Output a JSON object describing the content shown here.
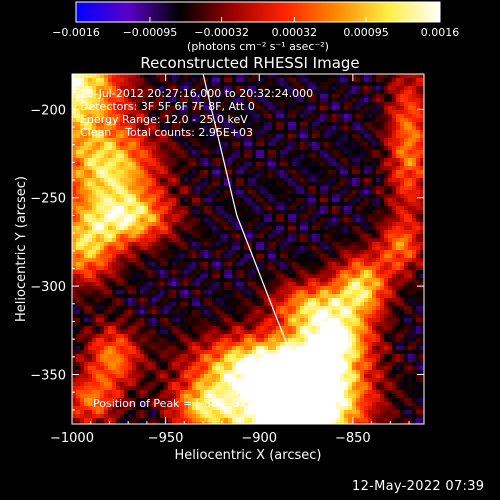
{
  "chart_data": {
    "type": "heatmap",
    "title": "Reconstructed RHESSI Image",
    "xlabel": "Heliocentric X (arcsec)",
    "ylabel": "Heliocentric Y (arcsec)",
    "xlim": [
      -1000,
      -812
    ],
    "ylim": [
      -378,
      -180
    ],
    "xticks": [
      -1000,
      -950,
      -900,
      -850
    ],
    "xtick_labels": [
      "−1000",
      "−950",
      "−900",
      "−850"
    ],
    "yticks": [
      -200,
      -250,
      -300,
      -350
    ],
    "ytick_labels": [
      "−200",
      "−250",
      "−300",
      "−350"
    ],
    "colorbar": {
      "range": [
        -0.0016,
        0.0016
      ],
      "ticks": [
        -0.0016,
        -0.00095,
        -0.00032,
        0.00032,
        0.00095,
        0.0016
      ],
      "tick_labels": [
        "−0.0016",
        "−0.00095",
        "−0.00032",
        "0.00032",
        "0.00095",
        "0.0016"
      ],
      "unit_label": "(photons cm⁻² s⁻¹ asec⁻²)",
      "stops": [
        "#0000ff",
        "#5a00c8",
        "#000000",
        "#9a0000",
        "#ff2200",
        "#ff8800",
        "#ffee44",
        "#ffffff"
      ]
    },
    "annotations": [
      "18-Jul-2012 20:27:16.000 to 20:32:24.000",
      "Detectors: 3F 5F 6F 7F 8F, Att 0",
      "Energy Range: 12.0 - 25.0 keV",
      "Clean    Total counts: 2.95E+03"
    ],
    "peak_label": "Position of Peak = [-888,-377]",
    "peak": [
      -888,
      -377
    ],
    "limb_curve": [
      [
        -930,
        -180
      ],
      [
        -912,
        -260
      ],
      [
        -890,
        -320
      ],
      [
        -868,
        -378
      ]
    ],
    "emission_blobs": [
      {
        "x": -1000,
        "y": -185,
        "peak": 0.0015,
        "sx": 18,
        "sy": 22
      },
      {
        "x": -980,
        "y": -235,
        "peak": 0.0011,
        "sx": 18,
        "sy": 18
      },
      {
        "x": -968,
        "y": -262,
        "peak": 0.0008,
        "sx": 15,
        "sy": 10
      },
      {
        "x": -993,
        "y": -278,
        "peak": 0.0009,
        "sx": 12,
        "sy": 14
      },
      {
        "x": -978,
        "y": -340,
        "peak": 0.0006,
        "sx": 10,
        "sy": 12
      },
      {
        "x": -888,
        "y": -377,
        "peak": 0.0016,
        "sx": 25,
        "sy": 22
      },
      {
        "x": -870,
        "y": -355,
        "peak": 0.0015,
        "sx": 18,
        "sy": 18
      },
      {
        "x": -905,
        "y": -345,
        "peak": 0.0009,
        "sx": 22,
        "sy": 12
      },
      {
        "x": -870,
        "y": -312,
        "peak": 0.0009,
        "sx": 15,
        "sy": 10
      },
      {
        "x": -845,
        "y": -300,
        "peak": 0.001,
        "sx": 10,
        "sy": 12
      },
      {
        "x": -858,
        "y": -330,
        "peak": 0.0008,
        "sx": 12,
        "sy": 10
      },
      {
        "x": -930,
        "y": -368,
        "peak": 0.0006,
        "sx": 12,
        "sy": 10
      },
      {
        "x": -820,
        "y": -220,
        "peak": 0.0006,
        "sx": 8,
        "sy": 30
      },
      {
        "x": -825,
        "y": -278,
        "peak": 0.0004,
        "sx": 8,
        "sy": 10
      },
      {
        "x": -990,
        "y": -365,
        "peak": 0.0005,
        "sx": 10,
        "sy": 10
      }
    ],
    "background_level": -0.0007
  },
  "footer": {
    "date": "12-May-2022 07:39"
  }
}
